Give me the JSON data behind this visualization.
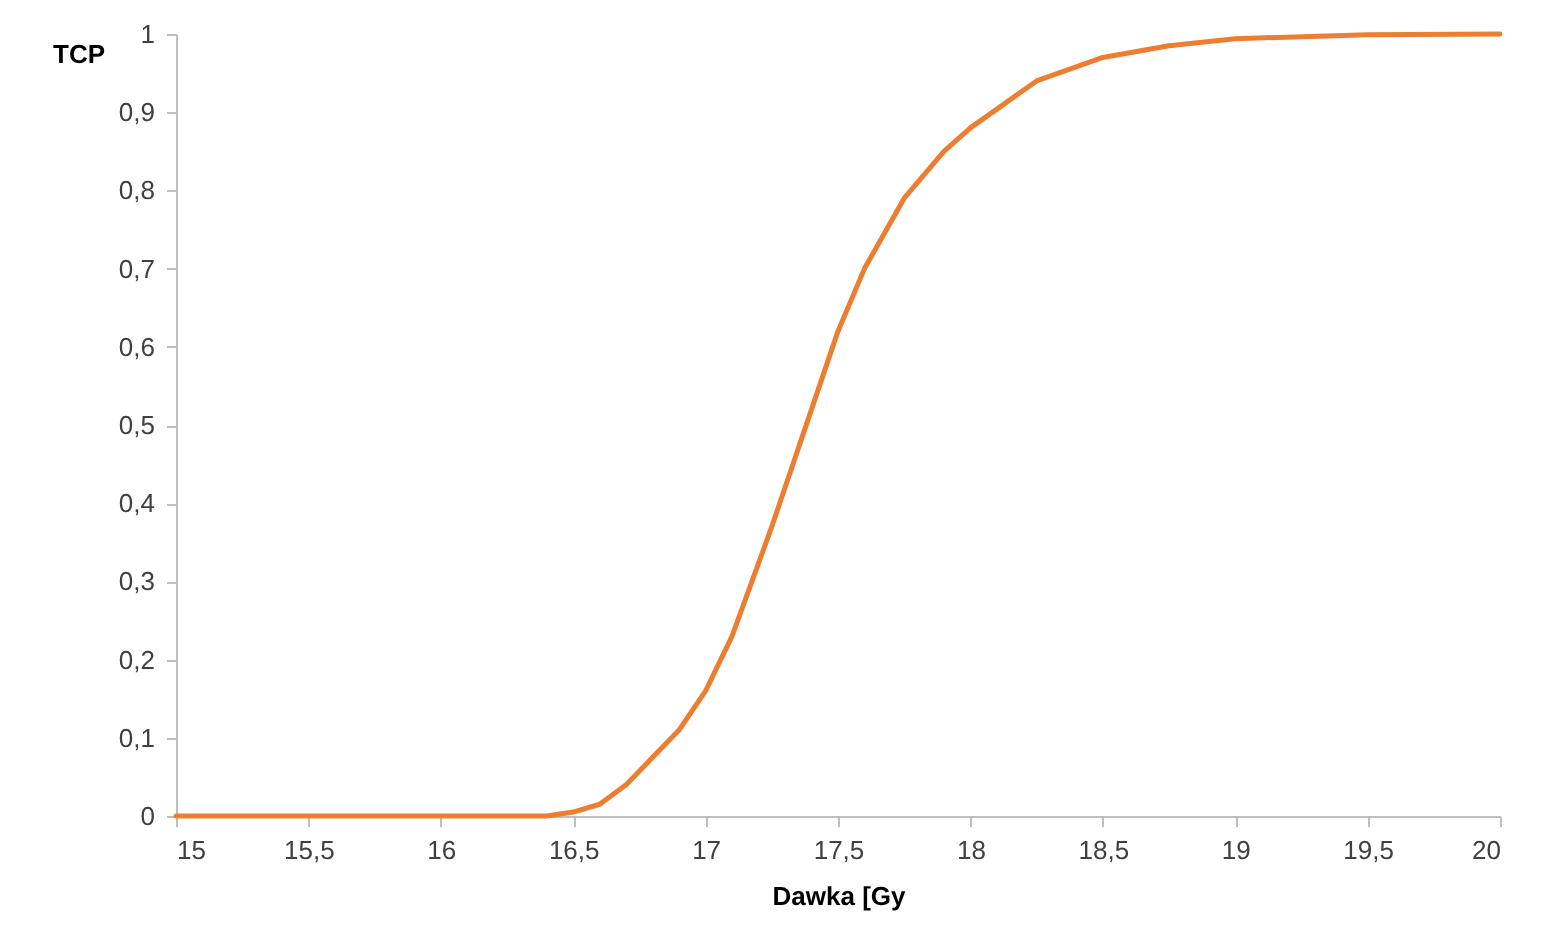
{
  "chart_data": {
    "type": "line",
    "xlabel": "Dawka [Gy",
    "ylabel": "TCP",
    "x": [
      15,
      16,
      16.4,
      16.5,
      16.6,
      16.7,
      16.8,
      16.9,
      17,
      17.1,
      17.25,
      17.4,
      17.5,
      17.6,
      17.75,
      17.9,
      18,
      18.25,
      18.5,
      18.75,
      19,
      19.5,
      20
    ],
    "series": [
      {
        "color": "#ed7d31",
        "values": [
          0,
          0,
          0,
          0.005,
          0.015,
          0.04,
          0.075,
          0.11,
          0.16,
          0.23,
          0.37,
          0.52,
          0.62,
          0.7,
          0.79,
          0.85,
          0.88,
          0.94,
          0.97,
          0.985,
          0.994,
          0.999,
          1
        ]
      }
    ],
    "xlim": [
      15,
      20
    ],
    "xticks": [
      15,
      {
        "value": 15.5,
        "label": "15,5"
      },
      16,
      {
        "value": 16.5,
        "label": "16,5"
      },
      17,
      {
        "value": 17.5,
        "label": "17,5"
      },
      18,
      {
        "value": 18.5,
        "label": "18,5"
      },
      19,
      {
        "value": 19.5,
        "label": "19,5"
      },
      20
    ],
    "ylim": [
      0,
      1
    ],
    "yticks": [
      0,
      {
        "value": 0.1,
        "label": "0,1"
      },
      {
        "value": 0.2,
        "label": "0,2"
      },
      {
        "value": 0.3,
        "label": "0,3"
      },
      {
        "value": 0.4,
        "label": "0,4"
      },
      {
        "value": 0.5,
        "label": "0,5"
      },
      {
        "value": 0.6,
        "label": "0,6"
      },
      {
        "value": 0.7,
        "label": "0,7"
      },
      {
        "value": 0.8,
        "label": "0,8"
      },
      {
        "value": 0.9,
        "label": "0,9"
      },
      1
    ],
    "grid": false,
    "marker": "none",
    "line_style": "solid"
  }
}
